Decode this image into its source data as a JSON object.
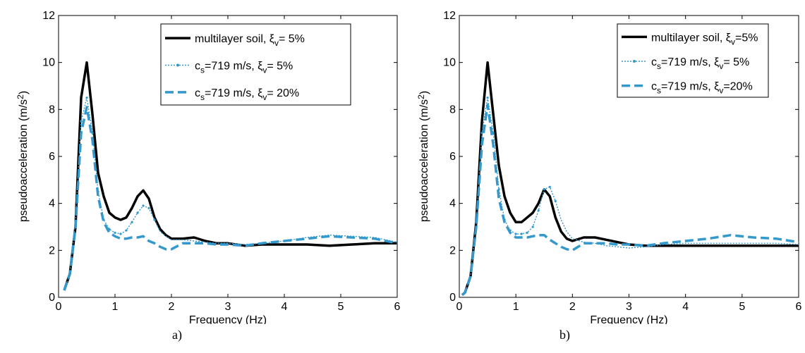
{
  "charts": [
    {
      "caption": "a)",
      "chart_data": {
        "type": "line",
        "xlabel": "Frequency (Hz)",
        "ylabel": "pseudoacceleration (m/s²)",
        "xlim": [
          0,
          6
        ],
        "ylim": [
          0,
          12
        ],
        "xticks": [
          0,
          1,
          2,
          3,
          4,
          5,
          6
        ],
        "yticks": [
          0,
          2,
          4,
          6,
          8,
          10,
          12
        ],
        "grid": false,
        "legend_position": "top-right",
        "series": [
          {
            "name": "multilayer soil, ξv= 5%",
            "color": "#000000",
            "style": "solid",
            "x": [
              0.1,
              0.2,
              0.3,
              0.4,
              0.5,
              0.6,
              0.7,
              0.8,
              0.9,
              1.0,
              1.1,
              1.2,
              1.3,
              1.4,
              1.5,
              1.6,
              1.7,
              1.8,
              1.9,
              2.0,
              2.2,
              2.4,
              2.6,
              2.8,
              3.0,
              3.3,
              3.6,
              4.0,
              4.4,
              4.8,
              5.2,
              5.6,
              6.0
            ],
            "y": [
              0.3,
              1.0,
              3.0,
              8.5,
              10.0,
              7.8,
              5.3,
              4.3,
              3.6,
              3.4,
              3.3,
              3.4,
              3.8,
              4.3,
              4.55,
              4.2,
              3.4,
              2.9,
              2.65,
              2.5,
              2.5,
              2.55,
              2.4,
              2.3,
              2.3,
              2.2,
              2.25,
              2.25,
              2.25,
              2.2,
              2.25,
              2.3,
              2.3
            ]
          },
          {
            "name": "cs=719 m/s, ξv= 5%",
            "color": "#3399cc",
            "style": "dotted",
            "x": [
              0.1,
              0.2,
              0.3,
              0.4,
              0.5,
              0.6,
              0.7,
              0.8,
              0.9,
              1.0,
              1.1,
              1.2,
              1.3,
              1.4,
              1.5,
              1.6,
              1.7,
              1.8,
              1.9,
              2.0,
              2.2,
              2.4,
              2.6,
              2.8,
              3.0,
              3.3,
              3.6,
              4.0,
              4.4,
              4.8,
              5.2,
              5.6,
              6.0
            ],
            "y": [
              0.3,
              1.0,
              3.2,
              7.5,
              8.5,
              7.0,
              4.5,
              3.3,
              2.9,
              2.75,
              2.7,
              2.85,
              3.2,
              3.6,
              3.9,
              3.8,
              3.3,
              2.8,
              2.6,
              2.45,
              2.45,
              2.4,
              2.35,
              2.3,
              2.3,
              2.25,
              2.3,
              2.4,
              2.55,
              2.65,
              2.6,
              2.55,
              2.35
            ]
          },
          {
            "name": "cs=719 m/s, ξv= 20%",
            "color": "#3399cc",
            "style": "dashed",
            "x": [
              0.1,
              0.2,
              0.3,
              0.4,
              0.5,
              0.6,
              0.7,
              0.8,
              0.9,
              1.0,
              1.1,
              1.2,
              1.3,
              1.4,
              1.5,
              1.6,
              1.7,
              1.8,
              1.9,
              2.0,
              2.2,
              2.4,
              2.6,
              2.8,
              3.0,
              3.3,
              3.6,
              4.0,
              4.4,
              4.8,
              5.2,
              5.6,
              6.0
            ],
            "y": [
              0.3,
              1.0,
              3.0,
              7.0,
              8.1,
              6.7,
              4.3,
              3.2,
              2.75,
              2.6,
              2.5,
              2.5,
              2.55,
              2.55,
              2.6,
              2.4,
              2.3,
              2.15,
              2.05,
              2.05,
              2.3,
              2.3,
              2.3,
              2.25,
              2.25,
              2.2,
              2.3,
              2.4,
              2.5,
              2.6,
              2.55,
              2.5,
              2.3
            ]
          }
        ]
      }
    },
    {
      "caption": "b)",
      "chart_data": {
        "type": "line",
        "xlabel": "Frequency (Hz)",
        "ylabel": "pseudoacceleration (m/s²)",
        "xlim": [
          0,
          6
        ],
        "ylim": [
          0,
          12
        ],
        "xticks": [
          0,
          1,
          2,
          3,
          4,
          5,
          6
        ],
        "yticks": [
          0,
          2,
          4,
          6,
          8,
          10,
          12
        ],
        "grid": false,
        "legend_position": "top-right",
        "series": [
          {
            "name": "multilayer soil, ξv=5%",
            "color": "#000000",
            "style": "solid",
            "x": [
              0.05,
              0.1,
              0.2,
              0.3,
              0.4,
              0.5,
              0.6,
              0.7,
              0.8,
              0.9,
              1.0,
              1.1,
              1.2,
              1.3,
              1.4,
              1.5,
              1.6,
              1.7,
              1.8,
              1.9,
              2.0,
              2.2,
              2.4,
              2.6,
              2.8,
              3.0,
              3.3,
              3.6,
              4.0,
              4.4,
              4.8,
              5.2,
              5.6,
              6.0
            ],
            "y": [
              0.1,
              0.2,
              0.9,
              3.2,
              7.5,
              10.0,
              7.8,
              5.6,
              4.3,
              3.6,
              3.2,
              3.2,
              3.4,
              3.6,
              4.0,
              4.6,
              4.3,
              3.4,
              2.8,
              2.5,
              2.4,
              2.55,
              2.55,
              2.45,
              2.35,
              2.25,
              2.2,
              2.2,
              2.2,
              2.2,
              2.2,
              2.2,
              2.2,
              2.2
            ]
          },
          {
            "name": "cs=719 m/s, ξv= 5%",
            "color": "#3399cc",
            "style": "dotted",
            "x": [
              0.05,
              0.1,
              0.2,
              0.3,
              0.4,
              0.5,
              0.6,
              0.7,
              0.8,
              0.9,
              1.0,
              1.1,
              1.2,
              1.3,
              1.4,
              1.5,
              1.6,
              1.7,
              1.8,
              1.9,
              2.0,
              2.2,
              2.4,
              2.6,
              2.8,
              3.0,
              3.3,
              3.6,
              4.0,
              4.4,
              4.8,
              5.2,
              5.6,
              6.0
            ],
            "y": [
              0.1,
              0.2,
              0.9,
              3.2,
              7.0,
              8.5,
              7.0,
              4.6,
              3.3,
              2.85,
              2.7,
              2.7,
              2.75,
              3.0,
              3.7,
              4.6,
              4.7,
              4.1,
              3.3,
              2.8,
              2.5,
              2.35,
              2.3,
              2.2,
              2.15,
              2.1,
              2.15,
              2.25,
              2.3,
              2.3,
              2.3,
              2.3,
              2.3,
              2.25
            ]
          },
          {
            "name": "cs=719 m/s, ξv=20%",
            "color": "#3399cc",
            "style": "dashed",
            "x": [
              0.05,
              0.1,
              0.2,
              0.3,
              0.4,
              0.5,
              0.6,
              0.7,
              0.8,
              0.9,
              1.0,
              1.1,
              1.2,
              1.3,
              1.4,
              1.5,
              1.6,
              1.7,
              1.8,
              1.9,
              2.0,
              2.2,
              2.4,
              2.6,
              2.8,
              3.0,
              3.3,
              3.6,
              4.0,
              4.4,
              4.8,
              5.2,
              5.6,
              6.0
            ],
            "y": [
              0.1,
              0.2,
              0.9,
              3.0,
              6.5,
              8.2,
              6.5,
              4.2,
              3.2,
              2.75,
              2.55,
              2.55,
              2.55,
              2.6,
              2.65,
              2.65,
              2.45,
              2.3,
              2.15,
              2.05,
              2.0,
              2.3,
              2.3,
              2.3,
              2.25,
              2.25,
              2.2,
              2.3,
              2.4,
              2.5,
              2.65,
              2.55,
              2.5,
              2.35
            ]
          }
        ]
      }
    }
  ]
}
